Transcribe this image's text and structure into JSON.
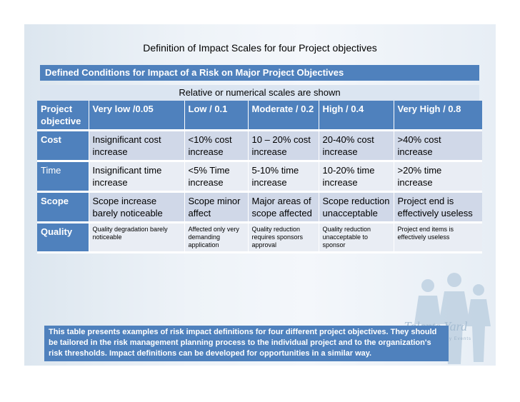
{
  "title": "Definition of Impact Scales for four Project objectives",
  "header_bar": "Defined Conditions for Impact of a Risk on Major Project Objectives",
  "sub_bar": "Relative or numerical scales are shown",
  "table": {
    "columns": [
      "Project objective",
      "Very low /0.05",
      "Low / 0.1",
      "Moderate / 0.2",
      "High / 0.4",
      "Very High / 0.8"
    ],
    "rows": [
      {
        "label": "Cost",
        "cells": [
          "Insignificant cost increase",
          "<10% cost increase",
          "10 – 20% cost increase",
          "20-40% cost increase",
          ">40% cost increase"
        ]
      },
      {
        "label": "Time",
        "cells": [
          "Insignificant time increase",
          "<5% Time increase",
          "5-10% time increase",
          "10-20% time increase",
          ">20% time increase"
        ]
      },
      {
        "label": "Scope",
        "cells": [
          "Scope increase barely noticeable",
          "Scope minor affect",
          "Major areas of scope affected",
          "Scope reduction unacceptable",
          "Project end is effectively useless"
        ]
      },
      {
        "label": "Quality",
        "cells": [
          "Quality degradation barely noticeable",
          "Affected only very demanding application",
          "Quality reduction requires sponsors approval",
          "Quality reduction unacceptable to sponsor",
          "Project end items is effectively useless"
        ]
      }
    ]
  },
  "note": "This table presents examples of risk impact definitions for four different project objectives. They should be tailored in the risk management planning process to the individual project and to the organization's risk  thresholds. Impact definitions  can be developed for opportunities in a similar way.",
  "watermark": {
    "text": "Talents Yard",
    "sub": "Training  Consultancy  Events"
  },
  "colors": {
    "header": "#4f81bd",
    "row_light": "#d0d8e8",
    "row_pale": "#e9edf4",
    "sub_bar": "#dbe5f1"
  }
}
